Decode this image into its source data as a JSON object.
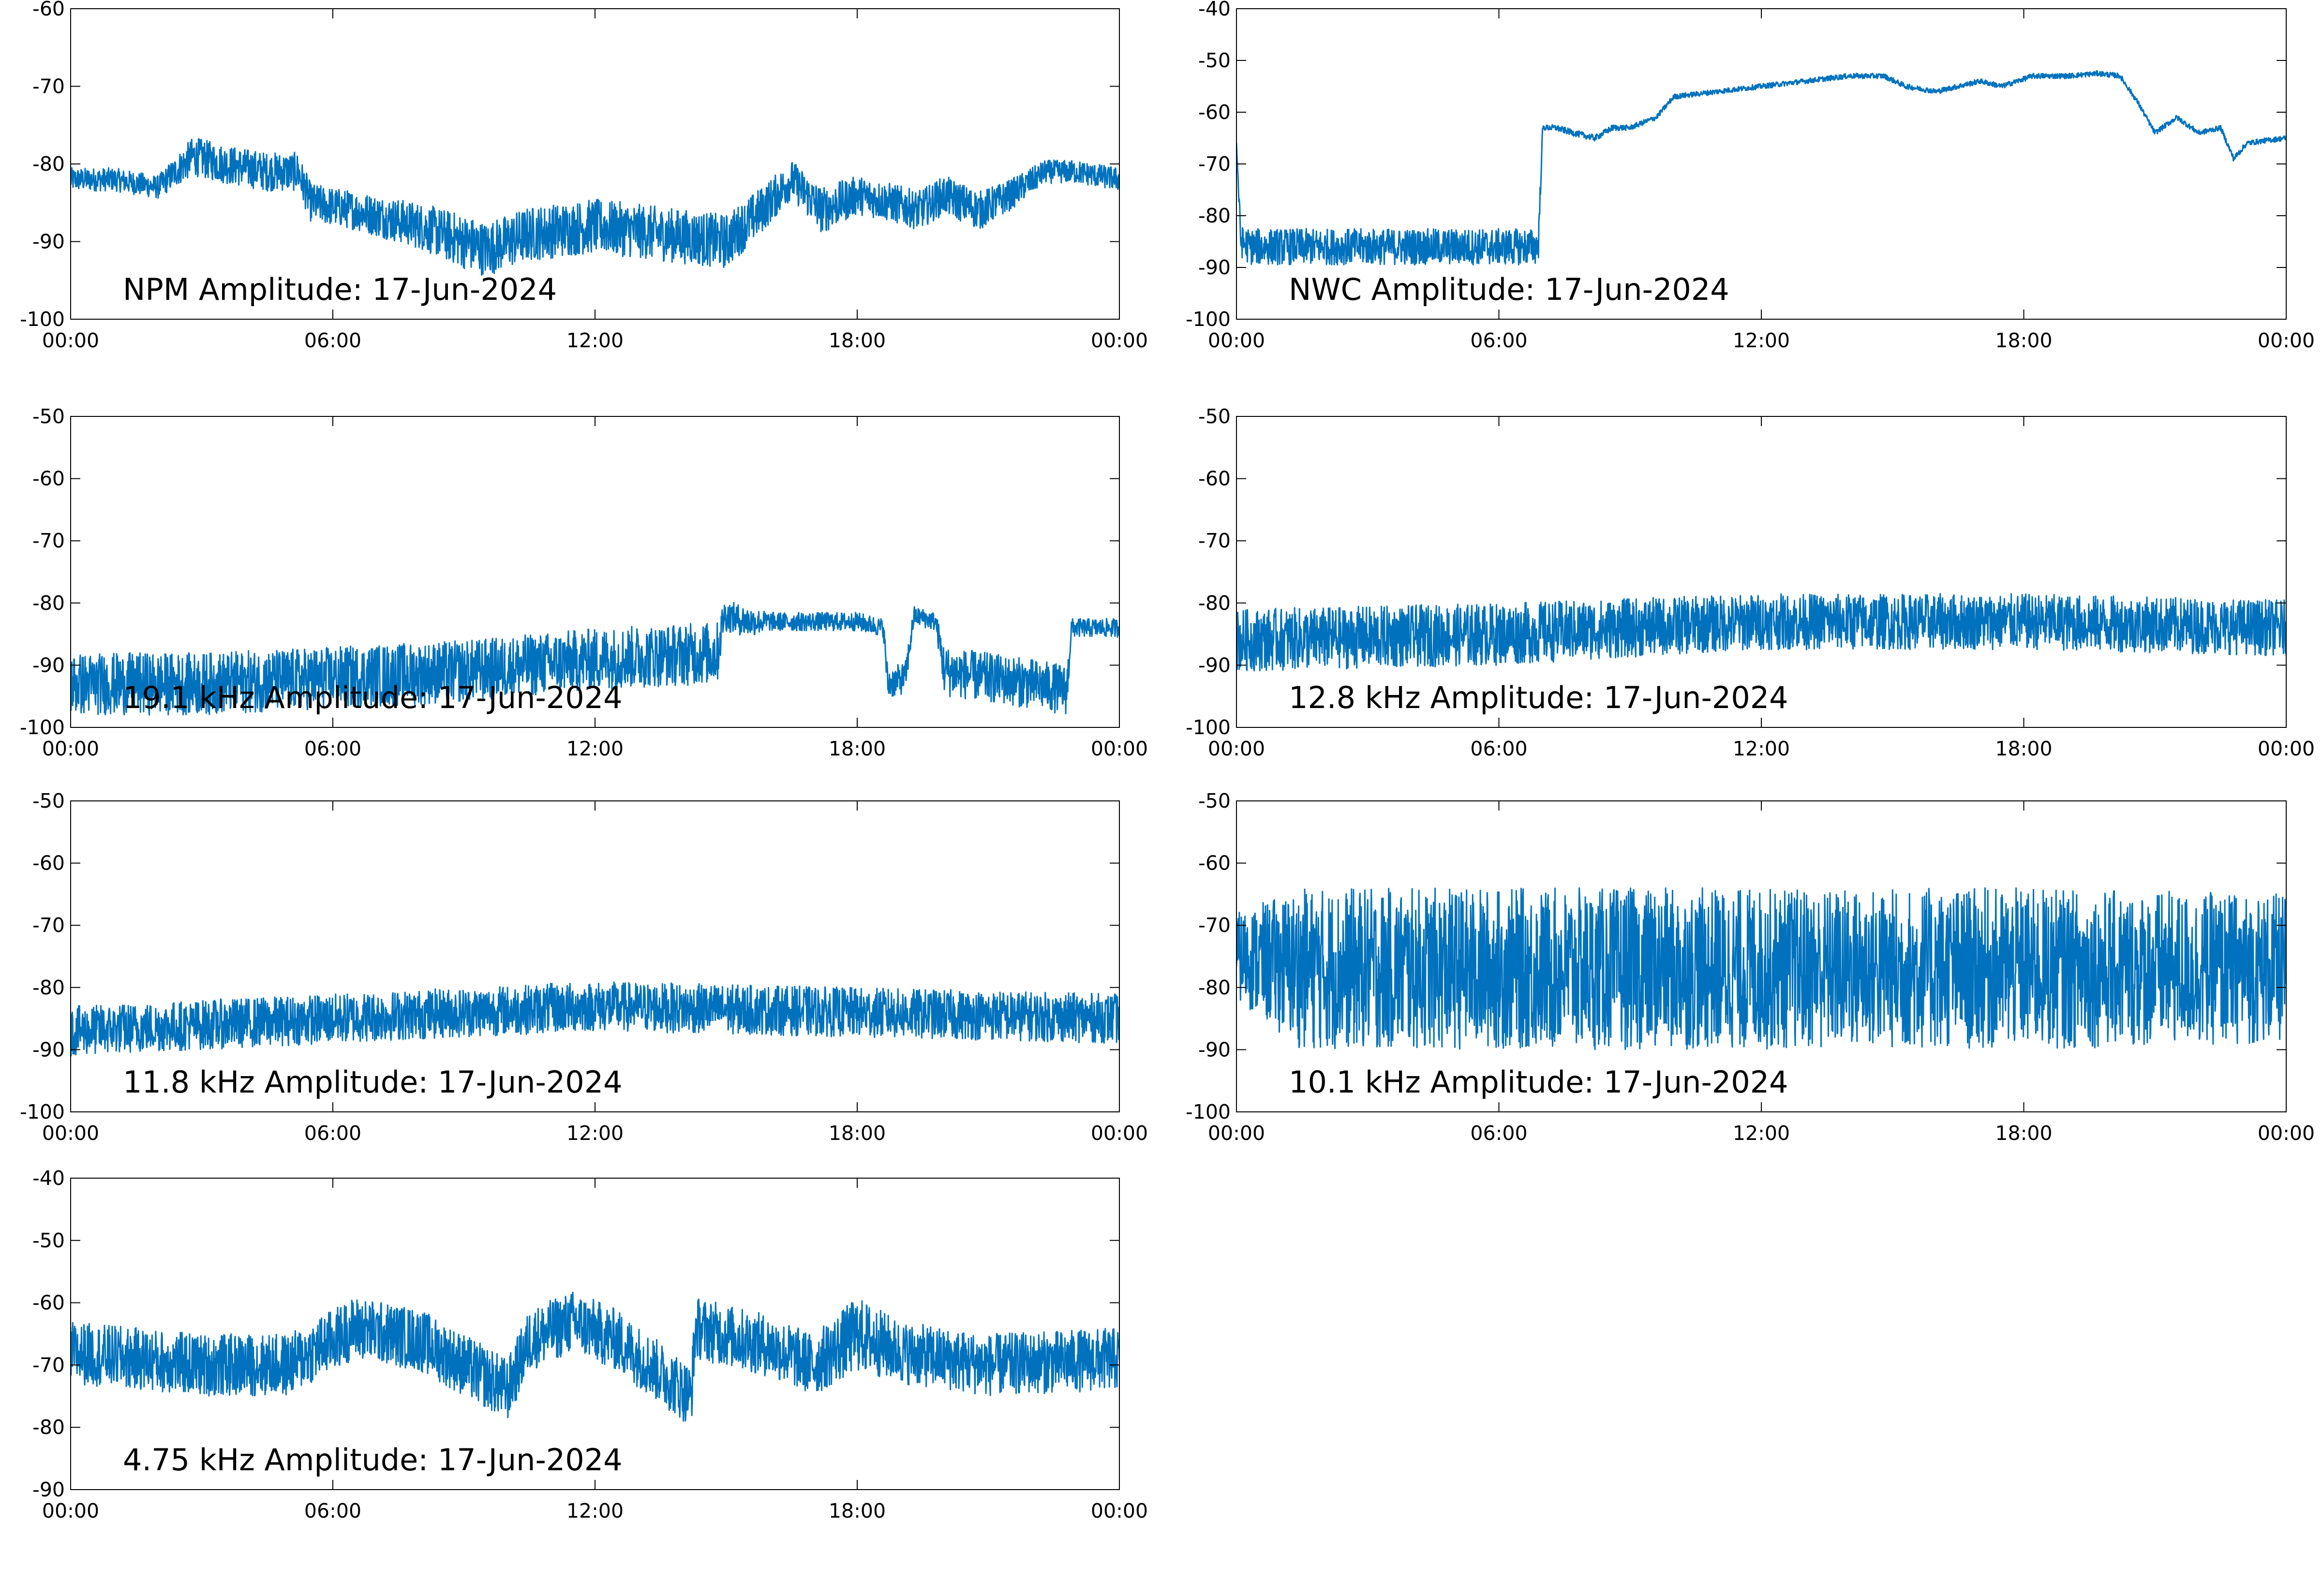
{
  "figure": {
    "background": "#ffffff",
    "line_color": "#0072bd",
    "axis_color": "#000000"
  },
  "chart_data": [
    {
      "type": "line",
      "title": "NPM Amplitude: 17-Jun-2024",
      "xlabel": "",
      "ylabel": "",
      "x_ticks": [
        "00:00",
        "06:00",
        "12:00",
        "18:00",
        "00:00"
      ],
      "y_ticks": [
        -60,
        -70,
        -80,
        -90,
        -100
      ],
      "xlim": [
        0,
        24
      ],
      "ylim": [
        -100,
        -60
      ],
      "grid": false,
      "series": [
        {
          "color": "#0072bd",
          "x": [
            0,
            1,
            2,
            2.8,
            3.5,
            4.5,
            5.2,
            5.5,
            6.5,
            8,
            9,
            9.5,
            10.5,
            12,
            13.5,
            15,
            15.8,
            16.5,
            17.2,
            18,
            18.8,
            19.4,
            20,
            20.8,
            21.5,
            22.3,
            23,
            24
          ],
          "y": [
            -82,
            -82,
            -83,
            -79,
            -80,
            -81,
            -81,
            -85,
            -86,
            -88,
            -90,
            -91,
            -89,
            -88,
            -89,
            -90,
            -86,
            -82,
            -86,
            -84,
            -85,
            -86,
            -84,
            -86,
            -84,
            -81,
            -81,
            -82
          ],
          "noise": [
            1.5,
            1.5,
            1.5,
            2.5,
            2.5,
            2.5,
            2.5,
            2.5,
            2.5,
            3,
            3.5,
            3.5,
            3.5,
            3.5,
            3.5,
            3.5,
            3,
            2.5,
            3,
            2.5,
            2.5,
            2.5,
            2.5,
            2.5,
            2,
            1.5,
            1.5,
            1.5
          ]
        }
      ]
    },
    {
      "type": "line",
      "title": "NWC Amplitude: 17-Jun-2024",
      "xlabel": "",
      "ylabel": "",
      "x_ticks": [
        "00:00",
        "06:00",
        "12:00",
        "18:00",
        "00:00"
      ],
      "y_ticks": [
        -40,
        -50,
        -60,
        -70,
        -80,
        -90,
        -100
      ],
      "xlim": [
        0,
        24
      ],
      "ylim": [
        -100,
        -40
      ],
      "grid": false,
      "series": [
        {
          "color": "#0072bd",
          "x": [
            0,
            0.1,
            0.3,
            2,
            4,
            6,
            6.9,
            7.0,
            7.3,
            7.7,
            8.2,
            8.6,
            9,
            9.6,
            10,
            11,
            12,
            13,
            14,
            14.8,
            15.3,
            16,
            17,
            17.5,
            18.2,
            19,
            19.7,
            20.2,
            20.6,
            21,
            21.5,
            22,
            22.5,
            22.8,
            23.1,
            23.5,
            24
          ],
          "y": [
            -66,
            -85,
            -86,
            -86,
            -86,
            -86,
            -86,
            -63,
            -63,
            -64,
            -65,
            -63,
            -63,
            -61,
            -57,
            -56,
            -55,
            -54,
            -53,
            -53,
            -55,
            -56,
            -54,
            -55,
            -53,
            -53,
            -52.5,
            -53,
            -58,
            -64,
            -61,
            -64,
            -63,
            -69,
            -66,
            -65.5,
            -65
          ],
          "noise": [
            0,
            3,
            3.5,
            3.5,
            3.5,
            3.5,
            3.5,
            0.5,
            0.6,
            0.6,
            0.6,
            0.6,
            0.5,
            0.5,
            0.5,
            0.5,
            0.5,
            0.5,
            0.5,
            0.5,
            0.5,
            0.5,
            0.5,
            0.5,
            0.5,
            0.5,
            0.5,
            0.5,
            0.5,
            0.5,
            0.5,
            0.5,
            0.5,
            0.6,
            0.5,
            0.5,
            0.5
          ]
        }
      ]
    },
    {
      "type": "line",
      "title": "19.1 kHz Amplitude: 17-Jun-2024",
      "xlabel": "",
      "ylabel": "",
      "x_ticks": [
        "00:00",
        "06:00",
        "12:00",
        "18:00",
        "00:00"
      ],
      "y_ticks": [
        -50,
        -60,
        -70,
        -80,
        -90,
        -100
      ],
      "xlim": [
        0,
        24
      ],
      "ylim": [
        -100,
        -50
      ],
      "grid": false,
      "series": [
        {
          "color": "#0072bd",
          "x": [
            0,
            3,
            6,
            9,
            12,
            14.8,
            14.95,
            15.5,
            16,
            17,
            18,
            18.6,
            18.7,
            19.1,
            19.3,
            19.8,
            20.0,
            21,
            22,
            22.8,
            22.9,
            24
          ],
          "y": [
            -93,
            -93,
            -92,
            -91,
            -89,
            -88,
            -82,
            -83,
            -83,
            -83,
            -83,
            -84,
            -93,
            -92,
            -82,
            -83,
            -91,
            -92,
            -93,
            -94,
            -84,
            -84
          ],
          "noise": [
            5,
            5,
            5,
            5,
            5,
            5,
            2.5,
            2.5,
            1.5,
            1.5,
            1.5,
            1.5,
            2.5,
            2.5,
            1.5,
            1.5,
            4,
            4,
            4,
            4,
            1.5,
            1.5
          ]
        }
      ]
    },
    {
      "type": "line",
      "title": "12.8 kHz Amplitude: 17-Jun-2024",
      "xlabel": "",
      "ylabel": "",
      "x_ticks": [
        "00:00",
        "06:00",
        "12:00",
        "18:00",
        "00:00"
      ],
      "y_ticks": [
        -50,
        -60,
        -70,
        -80,
        -90,
        -100
      ],
      "xlim": [
        0,
        24
      ],
      "ylim": [
        -100,
        -50
      ],
      "grid": false,
      "series": [
        {
          "color": "#0072bd",
          "x": [
            0,
            6,
            12,
            18,
            24
          ],
          "y": [
            -86,
            -85,
            -83,
            -83,
            -84
          ],
          "noise": [
            5,
            5,
            4.5,
            4.5,
            4.5
          ]
        }
      ]
    },
    {
      "type": "line",
      "title": "11.8 kHz Amplitude: 17-Jun-2024",
      "xlabel": "",
      "ylabel": "",
      "x_ticks": [
        "00:00",
        "06:00",
        "12:00",
        "18:00",
        "00:00"
      ],
      "y_ticks": [
        -50,
        -60,
        -70,
        -80,
        -90,
        -100
      ],
      "xlim": [
        0,
        24
      ],
      "ylim": [
        -100,
        -50
      ],
      "grid": false,
      "series": [
        {
          "color": "#0072bd",
          "x": [
            0,
            6,
            12,
            18,
            24
          ],
          "y": [
            -87,
            -85,
            -83,
            -84,
            -85
          ],
          "noise": [
            4,
            4,
            4,
            4,
            4
          ]
        }
      ]
    },
    {
      "type": "line",
      "title": "10.1 kHz Amplitude: 17-Jun-2024",
      "xlabel": "",
      "ylabel": "",
      "x_ticks": [
        "00:00",
        "06:00",
        "12:00",
        "18:00",
        "00:00"
      ],
      "y_ticks": [
        -50,
        -60,
        -70,
        -80,
        -90,
        -100
      ],
      "xlim": [
        0,
        24
      ],
      "ylim": [
        -100,
        -50
      ],
      "grid": false,
      "series": [
        {
          "color": "#0072bd",
          "x": [
            0,
            1.5,
            6,
            12,
            18,
            24
          ],
          "y": [
            -75,
            -77,
            -77,
            -77,
            -77,
            -77
          ],
          "noise": [
            7,
            13,
            13,
            13,
            13,
            12
          ]
        }
      ]
    },
    {
      "type": "line",
      "title": "4.75 kHz Amplitude: 17-Jun-2024",
      "xlabel": "",
      "ylabel": "",
      "x_ticks": [
        "00:00",
        "06:00",
        "12:00",
        "18:00",
        "00:00"
      ],
      "y_ticks": [
        -40,
        -50,
        -60,
        -70,
        -80,
        -90
      ],
      "xlim": [
        0,
        24
      ],
      "ylim": [
        -90,
        -40
      ],
      "grid": false,
      "series": [
        {
          "color": "#0072bd",
          "x": [
            0,
            3,
            5,
            6.5,
            8,
            9,
            10,
            10.5,
            11.5,
            12.5,
            14.2,
            14.3,
            16,
            17,
            18,
            19,
            21,
            24
          ],
          "y": [
            -68,
            -70,
            -70,
            -64,
            -66,
            -70,
            -74,
            -66,
            -63,
            -66,
            -75,
            -64,
            -67,
            -70,
            -65,
            -68,
            -70,
            -69
          ],
          "noise": [
            5,
            5,
            5,
            5,
            5,
            5,
            5,
            5,
            5,
            5,
            5,
            5,
            5,
            5,
            6,
            5,
            5,
            5
          ]
        }
      ]
    }
  ]
}
